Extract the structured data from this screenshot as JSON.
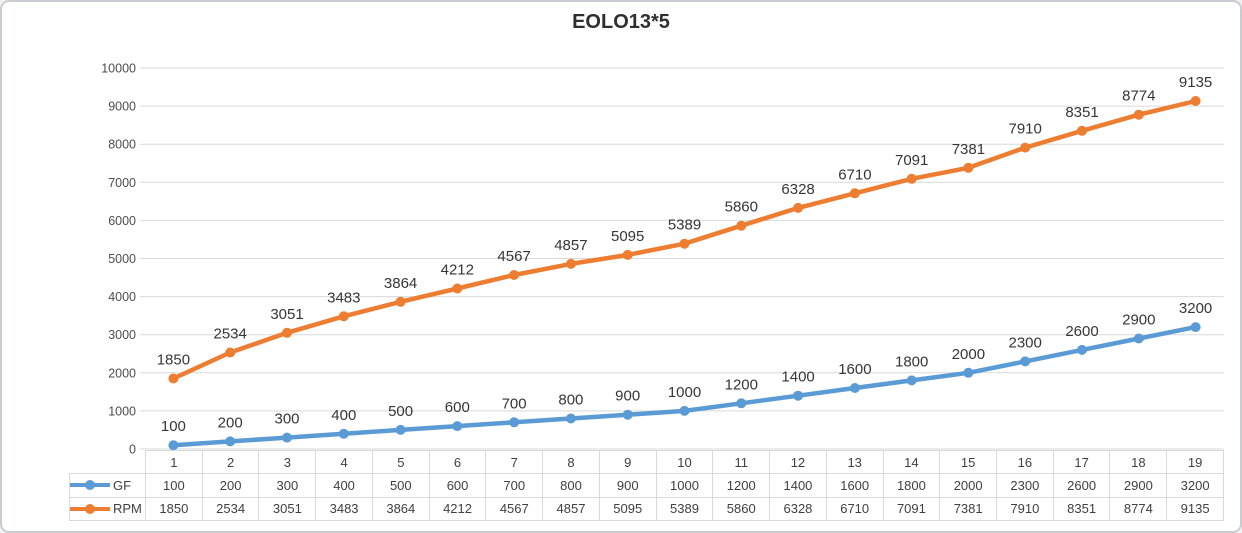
{
  "chart_data": {
    "type": "line",
    "title": "EOLO13*5",
    "categories": [
      "1",
      "2",
      "3",
      "4",
      "5",
      "6",
      "7",
      "8",
      "9",
      "10",
      "11",
      "12",
      "13",
      "14",
      "15",
      "16",
      "17",
      "18",
      "19"
    ],
    "series": [
      {
        "name": "GF",
        "color": "#5B9BD5",
        "values": [
          100,
          200,
          300,
          400,
          500,
          600,
          700,
          800,
          900,
          1000,
          1200,
          1400,
          1600,
          1800,
          2000,
          2300,
          2600,
          2900,
          3200
        ]
      },
      {
        "name": "RPM",
        "color": "#ED7D31",
        "values": [
          1850,
          2534,
          3051,
          3483,
          3864,
          4212,
          4567,
          4857,
          5095,
          5389,
          5860,
          6328,
          6710,
          7091,
          7381,
          7910,
          8351,
          8774,
          9135
        ]
      }
    ],
    "xlabel": "",
    "ylabel": "",
    "ylim": [
      0,
      10000
    ],
    "yticks": [
      0,
      1000,
      2000,
      3000,
      4000,
      5000,
      6000,
      7000,
      8000,
      9000,
      10000
    ],
    "grid": true,
    "data_labels": "above",
    "legend_position": "data-table-left",
    "gridline_color": "#d9d9d9",
    "axis_text_color": "#4d4d4d",
    "label_text_color": "#363636"
  }
}
